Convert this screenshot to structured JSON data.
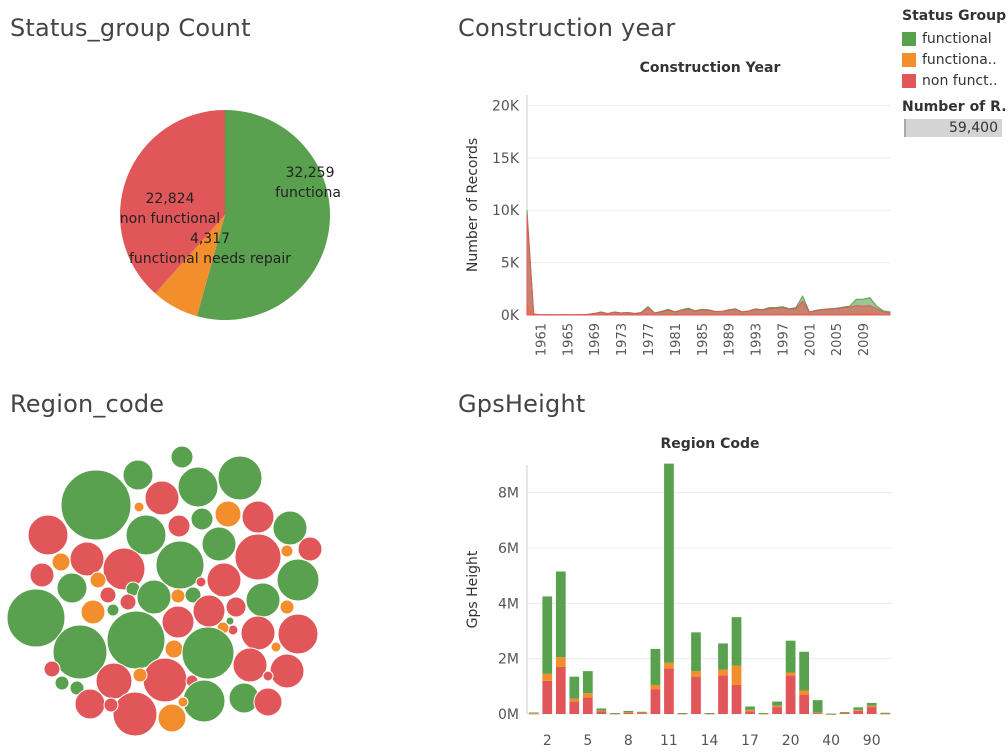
{
  "sections": {
    "status_title": "Status_group Count",
    "construction_title": "Construction year",
    "region_title": "Region_code",
    "gps_title": "GpsHeight"
  },
  "legend": {
    "title": "Status Group",
    "items": [
      {
        "label": "functional",
        "color": "#59a14f"
      },
      {
        "label": "functiona..",
        "color": "#f28e2b"
      },
      {
        "label": "non funct..",
        "color": "#e15759"
      }
    ]
  },
  "summary": {
    "title": "Number of R..",
    "value": "59,400"
  },
  "chart_data": [
    {
      "type": "pie",
      "title": "",
      "slices": [
        {
          "label": "functional",
          "value": 32259,
          "value_label": "32,259",
          "color": "#59a14f"
        },
        {
          "label": "functional needs repair",
          "value": 4317,
          "value_label": "4,317",
          "color": "#f28e2b"
        },
        {
          "label": "non functional",
          "value": 22824,
          "value_label": "22,824",
          "color": "#e15759"
        }
      ]
    },
    {
      "type": "area",
      "title": "Construction Year",
      "xlabel": "",
      "ylabel": "Number of Records",
      "ylim": [
        0,
        21000
      ],
      "yticks": [
        0,
        5000,
        10000,
        15000,
        20000
      ],
      "ytick_labels": [
        "0K",
        "5K",
        "10K",
        "15K",
        "20K"
      ],
      "x": [
        0,
        1960,
        1961,
        1962,
        1963,
        1964,
        1965,
        1966,
        1967,
        1968,
        1969,
        1970,
        1971,
        1972,
        1973,
        1974,
        1975,
        1976,
        1977,
        1978,
        1979,
        1980,
        1981,
        1982,
        1983,
        1984,
        1985,
        1986,
        1987,
        1988,
        1989,
        1990,
        1991,
        1992,
        1993,
        1994,
        1995,
        1996,
        1997,
        1998,
        1999,
        2000,
        2001,
        2002,
        2003,
        2004,
        2005,
        2006,
        2007,
        2008,
        2009,
        2010,
        2011,
        2012,
        2013
      ],
      "xtick_labels": [
        "1961",
        "1965",
        "1969",
        "1973",
        "1977",
        "1981",
        "1985",
        "1989",
        "1993",
        "1997",
        "2001",
        "2005",
        "2009"
      ],
      "series": [
        {
          "name": "functional",
          "color": "#59a14f",
          "values": [
            10000,
            100,
            20,
            30,
            20,
            40,
            40,
            20,
            50,
            60,
            150,
            300,
            150,
            300,
            200,
            250,
            150,
            250,
            800,
            200,
            350,
            550,
            300,
            500,
            650,
            400,
            550,
            500,
            350,
            350,
            500,
            600,
            300,
            400,
            600,
            500,
            700,
            700,
            800,
            600,
            700,
            1800,
            300,
            450,
            550,
            600,
            650,
            750,
            850,
            1500,
            1500,
            1650,
            850,
            400,
            300
          ]
        },
        {
          "name": "functiona..",
          "color": "#f28e2b",
          "values": [
            1000,
            10,
            5,
            5,
            5,
            5,
            5,
            5,
            5,
            5,
            10,
            20,
            10,
            20,
            15,
            20,
            15,
            20,
            60,
            20,
            30,
            40,
            30,
            40,
            50,
            30,
            40,
            40,
            30,
            30,
            40,
            50,
            30,
            40,
            50,
            40,
            60,
            60,
            70,
            50,
            60,
            150,
            30,
            40,
            45,
            50,
            55,
            60,
            70,
            110,
            110,
            120,
            60,
            30,
            25
          ]
        },
        {
          "name": "non funct..",
          "color": "#e15759",
          "values": [
            9500,
            80,
            20,
            30,
            20,
            40,
            40,
            20,
            50,
            60,
            120,
            250,
            120,
            250,
            180,
            220,
            130,
            200,
            700,
            180,
            300,
            450,
            280,
            450,
            550,
            350,
            500,
            450,
            330,
            330,
            450,
            550,
            300,
            380,
            550,
            450,
            600,
            650,
            700,
            550,
            600,
            1300,
            280,
            400,
            500,
            550,
            600,
            700,
            750,
            900,
            850,
            900,
            600,
            300,
            200
          ]
        }
      ]
    },
    {
      "type": "scatter",
      "title": "",
      "description_kind": "packed-bubbles",
      "series": [
        {
          "name": "functional",
          "color": "#59a14f"
        },
        {
          "name": "functiona..",
          "color": "#f28e2b"
        },
        {
          "name": "non funct..",
          "color": "#e15759"
        }
      ]
    },
    {
      "type": "bar",
      "title": "Region Code",
      "xlabel": "",
      "ylabel": "Gps Height",
      "ylim": [
        0,
        9000000
      ],
      "yticks": [
        0,
        2000000,
        4000000,
        6000000,
        8000000
      ],
      "ytick_labels": [
        "0M",
        "2M",
        "4M",
        "6M",
        "8M"
      ],
      "categories": [
        "1",
        "2",
        "3",
        "4",
        "5",
        "6",
        "7",
        "8",
        "9",
        "10",
        "11",
        "12",
        "13",
        "14",
        "15",
        "16",
        "17",
        "18",
        "19",
        "20",
        "21",
        "24",
        "40",
        "60",
        "80",
        "90",
        "99"
      ],
      "xtick_labels": [
        "2",
        "5",
        "8",
        "11",
        "14",
        "17",
        "20",
        "40",
        "90"
      ],
      "series": [
        {
          "name": "non funct..",
          "color": "#e15759",
          "values": [
            20000,
            1200000,
            1700000,
            450000,
            600000,
            100000,
            20000,
            50000,
            40000,
            900000,
            1650000,
            20000,
            1350000,
            20000,
            1400000,
            1050000,
            100000,
            20000,
            250000,
            1400000,
            700000,
            30000,
            5000,
            40000,
            120000,
            250000,
            20000
          ]
        },
        {
          "name": "functiona..",
          "color": "#f28e2b",
          "values": [
            5000,
            250000,
            350000,
            100000,
            150000,
            20000,
            5000,
            10000,
            10000,
            150000,
            200000,
            5000,
            200000,
            5000,
            200000,
            700000,
            50000,
            5000,
            50000,
            100000,
            150000,
            20000,
            1000,
            10000,
            30000,
            50000,
            5000
          ]
        },
        {
          "name": "functional",
          "color": "#59a14f",
          "values": [
            30000,
            2800000,
            3100000,
            800000,
            800000,
            80000,
            10000,
            50000,
            30000,
            1300000,
            7200000,
            10000,
            1400000,
            10000,
            950000,
            1750000,
            120000,
            10000,
            150000,
            1150000,
            1400000,
            450000,
            5000,
            20000,
            90000,
            100000,
            20000
          ]
        }
      ]
    }
  ]
}
